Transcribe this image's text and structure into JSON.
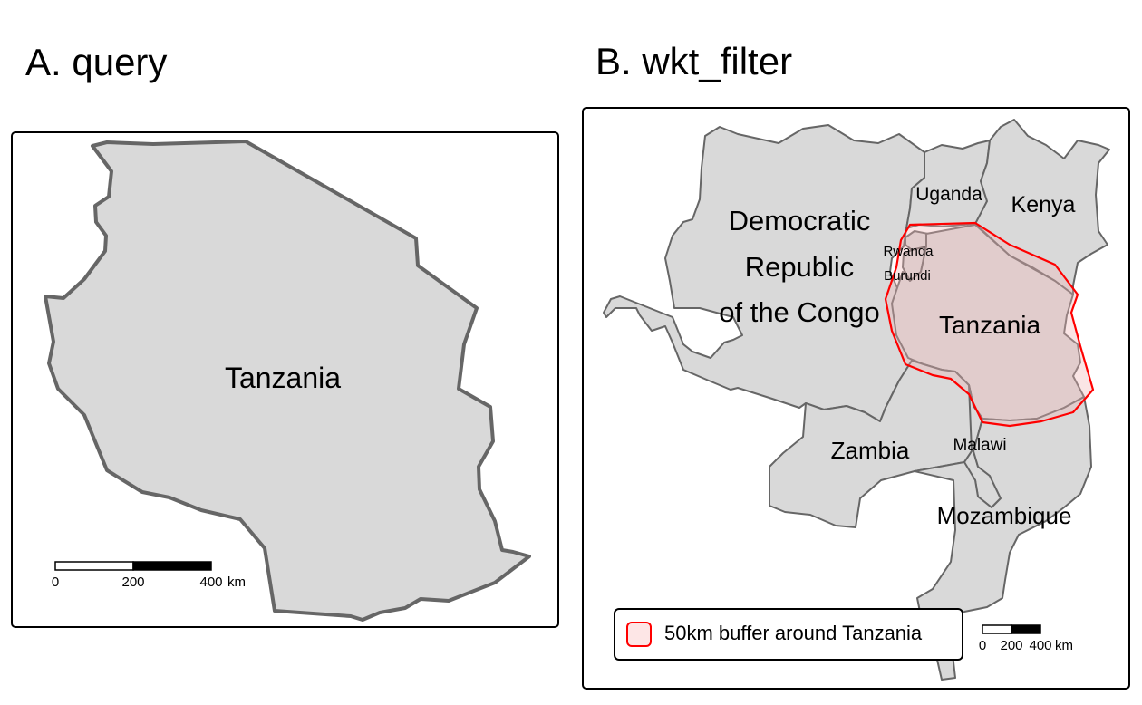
{
  "panel_a": {
    "title": "A. query",
    "country_label": "Tanzania",
    "scalebar": {
      "ticks": [
        "0",
        "200",
        "400"
      ],
      "unit": "km"
    }
  },
  "panel_b": {
    "title": "B. wkt_filter",
    "labels": {
      "drc_line1": "Democratic",
      "drc_line2": "Republic",
      "drc_line3": "of the Congo",
      "uganda": "Uganda",
      "kenya": "Kenya",
      "rwanda": "Rwanda",
      "burundi": "Burundi",
      "tanzania": "Tanzania",
      "zambia": "Zambia",
      "malawi": "Malawi",
      "mozambique": "Mozambique"
    },
    "legend": {
      "label": "50km buffer around Tanzania",
      "color": "#ff0000",
      "fill": "#fde6e6"
    },
    "scalebar": {
      "ticks": [
        "0",
        "200",
        "400"
      ],
      "unit": "km"
    }
  },
  "colors": {
    "land": "#d9d9d9",
    "border": "#666666",
    "buffer": "#ff0000"
  }
}
